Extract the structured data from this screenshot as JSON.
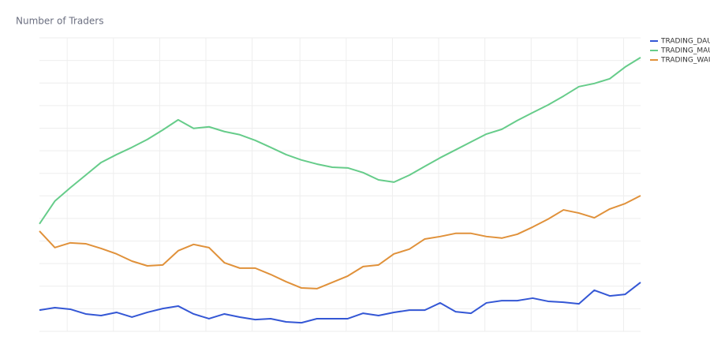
{
  "chart_data": {
    "type": "line",
    "title": "Number of Traders",
    "x": [
      0,
      1,
      2,
      3,
      4,
      5,
      6,
      7,
      8,
      9,
      10,
      11,
      12,
      13,
      14,
      15,
      16,
      17,
      18,
      19,
      20,
      21,
      22,
      23,
      24,
      25,
      26,
      27,
      28,
      29,
      30,
      31,
      32,
      33,
      34,
      35,
      36,
      37,
      38,
      39
    ],
    "xlim": [
      0,
      39
    ],
    "xticks": [
      1.8,
      4.8,
      7.8,
      10.8,
      13.8,
      16.9,
      19.9,
      22.9,
      25.9,
      28.9,
      31.9,
      34.9,
      37.9
    ],
    "ylim": [
      0,
      13
    ],
    "yticks": [
      0,
      1,
      2,
      3,
      4,
      5,
      6,
      7,
      8,
      9,
      10,
      11,
      12,
      13
    ],
    "grid": true,
    "legend": "top-right",
    "series": [
      {
        "name": "TRADING_DAU",
        "color": "#3457d5",
        "values": [
          0.94,
          1.05,
          0.98,
          0.77,
          0.7,
          0.84,
          0.63,
          0.84,
          1.01,
          1.12,
          0.77,
          0.56,
          0.77,
          0.63,
          0.52,
          0.56,
          0.42,
          0.38,
          0.56,
          0.56,
          0.56,
          0.8,
          0.7,
          0.84,
          0.94,
          0.94,
          1.26,
          0.87,
          0.8,
          1.26,
          1.36,
          1.36,
          1.47,
          1.33,
          1.29,
          1.22,
          1.82,
          1.57,
          1.64,
          2.17
        ]
      },
      {
        "name": "TRADING_MAU",
        "color": "#66cc8a",
        "values": [
          4.76,
          5.77,
          6.36,
          6.92,
          7.48,
          7.83,
          8.15,
          8.5,
          8.92,
          9.37,
          8.99,
          9.06,
          8.85,
          8.71,
          8.46,
          8.15,
          7.83,
          7.59,
          7.41,
          7.27,
          7.24,
          7.03,
          6.71,
          6.61,
          6.92,
          7.31,
          7.69,
          8.04,
          8.39,
          8.74,
          8.95,
          9.34,
          9.69,
          10.03,
          10.42,
          10.84,
          10.98,
          11.19,
          11.71,
          12.13
        ]
      },
      {
        "name": "TRADING_WAU",
        "color": "#e0913a",
        "values": [
          4.44,
          3.71,
          3.92,
          3.88,
          3.67,
          3.43,
          3.11,
          2.9,
          2.94,
          3.57,
          3.85,
          3.71,
          3.04,
          2.8,
          2.8,
          2.52,
          2.2,
          1.92,
          1.89,
          2.17,
          2.45,
          2.87,
          2.94,
          3.43,
          3.64,
          4.09,
          4.2,
          4.34,
          4.34,
          4.2,
          4.13,
          4.3,
          4.62,
          4.97,
          5.38,
          5.24,
          5.03,
          5.42,
          5.66,
          6.01
        ]
      }
    ]
  }
}
